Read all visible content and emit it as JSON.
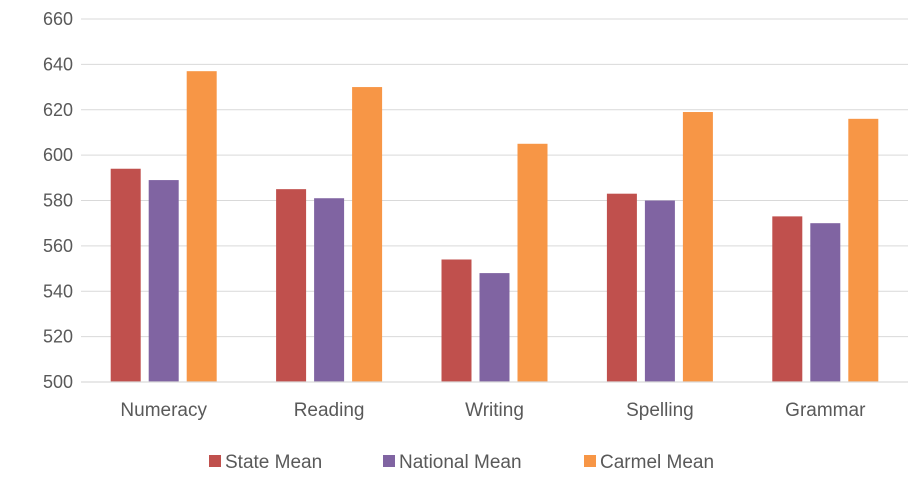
{
  "chart_data": {
    "type": "bar",
    "title": "",
    "xlabel": "",
    "ylabel": "",
    "categories": [
      "Numeracy",
      "Reading",
      "Writing",
      "Spelling",
      "Grammar"
    ],
    "series": [
      {
        "name": "State Mean",
        "color": "#C0504D",
        "values": [
          594,
          585,
          554,
          583,
          573
        ]
      },
      {
        "name": "National Mean",
        "color": "#8064A2",
        "values": [
          589,
          581,
          548,
          580,
          570
        ]
      },
      {
        "name": "Carmel Mean",
        "color": "#F79646",
        "values": [
          637,
          630,
          605,
          619,
          616
        ]
      }
    ],
    "ylim": [
      500,
      660
    ],
    "yticks": [
      "500",
      "520",
      "540",
      "560",
      "580",
      "600",
      "620",
      "640",
      "660"
    ],
    "grid": true,
    "legend": "bottom"
  }
}
